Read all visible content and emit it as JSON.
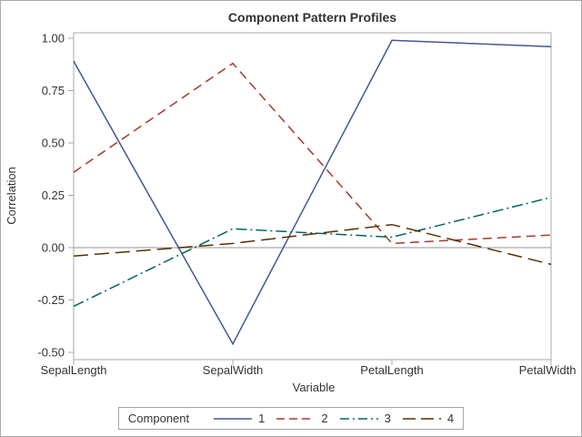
{
  "chart_data": {
    "type": "line",
    "title": "Component Pattern Profiles",
    "xlabel": "Variable",
    "ylabel": "Correlation",
    "categories": [
      "SepalLength",
      "SepalWidth",
      "PetalLength",
      "PetalWidth"
    ],
    "ylim": [
      -0.5,
      1.0
    ],
    "ytick_labels": [
      "1.00",
      "0.75",
      "0.50",
      "0.25",
      "0.00",
      "-0.25",
      "-0.50"
    ],
    "reference_line_y": 0.0,
    "grid": false,
    "legend": {
      "title": "Component",
      "position": "bottom"
    },
    "series": [
      {
        "name": "1",
        "dash": "solid",
        "color": "#445694",
        "values": [
          0.89,
          -0.46,
          0.99,
          0.96
        ]
      },
      {
        "name": "2",
        "dash": "dash",
        "color": "#A23A2E",
        "values": [
          0.36,
          0.88,
          0.02,
          0.06
        ]
      },
      {
        "name": "3",
        "dash": "dash-dot",
        "color": "#01665E",
        "values": [
          -0.28,
          0.09,
          0.05,
          0.24
        ]
      },
      {
        "name": "4",
        "dash": "long-dash",
        "color": "#543005",
        "values": [
          -0.04,
          0.02,
          0.11,
          -0.08
        ]
      }
    ]
  },
  "colors": {
    "text": "#333333",
    "frame": "#a8a8a8",
    "figure_border": "#a9a9a9",
    "reference_line": "#a9a9a9",
    "background": "#ffffff"
  }
}
